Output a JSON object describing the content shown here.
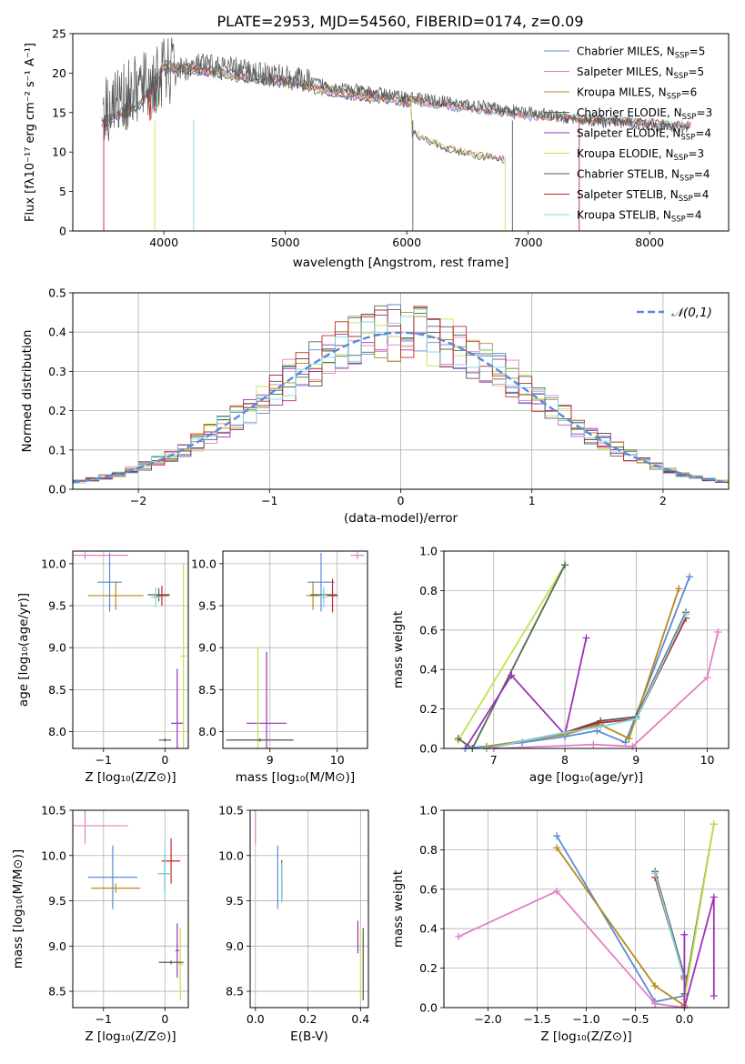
{
  "figure_title": "PLATE=2953, MJD=54560, FIBERID=0174, z=0.09",
  "series": [
    {
      "key": "chab_miles",
      "label": "Chabrier MILES, N",
      "sub": "SSP",
      "suffix": "=5",
      "color": "#5b8ad6"
    },
    {
      "key": "salp_miles",
      "label": "Salpeter MILES, N",
      "sub": "SSP",
      "suffix": "=5",
      "color": "#e37fc5"
    },
    {
      "key": "krou_miles",
      "label": "Kroupa MILES, N",
      "sub": "SSP",
      "suffix": "=6",
      "color": "#b58a1e"
    },
    {
      "key": "chab_elodie",
      "label": "Chabrier ELODIE, N",
      "sub": "SSP",
      "suffix": "=3",
      "color": "#4f6b4f"
    },
    {
      "key": "salp_elodie",
      "label": "Salpeter ELODIE, N",
      "sub": "SSP",
      "suffix": "=4",
      "color": "#9b32b8"
    },
    {
      "key": "krou_elodie",
      "label": "Kroupa ELODIE, N",
      "sub": "SSP",
      "suffix": "=3",
      "color": "#c8e04a"
    },
    {
      "key": "chab_stelib",
      "label": "Chabrier STELIB, N",
      "sub": "SSP",
      "suffix": "=4",
      "color": "#555555"
    },
    {
      "key": "salp_stelib",
      "label": "Salpeter STELIB, N",
      "sub": "SSP",
      "suffix": "=4",
      "color": "#c0282c"
    },
    {
      "key": "krou_stelib",
      "label": "Kroupa STELIB, N",
      "sub": "SSP",
      "suffix": "=4",
      "color": "#7dd8e0"
    }
  ],
  "chart_data": [
    {
      "id": "spectrum",
      "type": "line",
      "xlabel": "wavelength [Angstrom, rest frame]",
      "ylabel": "Flux [fλ10⁻¹⁷ erg cm⁻² s⁻¹ A⁻¹]",
      "xlim": [
        3250,
        8650
      ],
      "ylim": [
        0,
        25
      ],
      "xticks": [
        4000,
        5000,
        6000,
        7000,
        8000
      ],
      "yticks": [
        0,
        5,
        10,
        15,
        20,
        25
      ],
      "legend": "upper-right",
      "continuum": {
        "data": [
          [
            3500,
            15.5
          ],
          [
            3800,
            18
          ],
          [
            4000,
            20
          ],
          [
            4300,
            21
          ],
          [
            4600,
            20.5
          ],
          [
            5000,
            19.5
          ],
          [
            5500,
            18
          ],
          [
            6000,
            17
          ],
          [
            6500,
            16
          ],
          [
            7000,
            15
          ],
          [
            7500,
            14
          ],
          [
            8000,
            13.5
          ],
          [
            8300,
            13
          ]
        ],
        "model_high": [
          [
            3500,
            14
          ],
          [
            3800,
            16
          ],
          [
            4000,
            21
          ],
          [
            4300,
            20.5
          ],
          [
            4600,
            19.8
          ],
          [
            5000,
            19
          ],
          [
            5500,
            17.5
          ],
          [
            6000,
            16.5
          ],
          [
            6500,
            15.5
          ],
          [
            7000,
            14.5
          ],
          [
            7500,
            14
          ],
          [
            8000,
            13.6
          ],
          [
            8300,
            13.2
          ]
        ],
        "model_low": [
          [
            6050,
            12.8
          ],
          [
            6300,
            11
          ],
          [
            6500,
            10.2
          ],
          [
            6800,
            9.5
          ]
        ]
      }
    },
    {
      "id": "residuals",
      "type": "histogram",
      "xlabel": "(data-model)/error",
      "ylabel": "Normed distribution",
      "xlim": [
        -2.5,
        2.5
      ],
      "ylim": [
        0,
        0.5
      ],
      "xticks": [
        -2,
        -1,
        0,
        1,
        2
      ],
      "yticks": [
        0.0,
        0.1,
        0.2,
        0.3,
        0.4,
        0.5
      ],
      "reference": {
        "name": "𝒩(0,1)",
        "mean": 0,
        "sigma": 1,
        "color": "#5b8ad6"
      }
    },
    {
      "id": "age_vs_Z",
      "type": "errorbar",
      "xlabel": "Z [log₁₀(Z/Z⊙)]",
      "ylabel": "age  [log₁₀(age/yr)]",
      "xlim": [
        -1.5,
        0.38
      ],
      "ylim": [
        7.8,
        10.15
      ],
      "xticks": [
        -1,
        0
      ],
      "yticks": [
        8.0,
        8.5,
        9.0,
        9.5,
        10.0
      ],
      "points": [
        {
          "s": 1,
          "x": -1.3,
          "y": 10.1,
          "xe": 0.7,
          "ye": 0.05
        },
        {
          "s": 0,
          "x": -0.9,
          "y": 9.78,
          "xe": 0.2,
          "ye": 0.35
        },
        {
          "s": 2,
          "x": -0.8,
          "y": 9.62,
          "xe": 0.45,
          "ye": 0.17
        },
        {
          "s": 3,
          "x": -0.1,
          "y": 9.63,
          "xe": 0.18,
          "ye": 0.08
        },
        {
          "s": 7,
          "x": -0.05,
          "y": 9.62,
          "xe": 0.12,
          "ye": 0.12
        },
        {
          "s": 8,
          "x": -0.15,
          "y": 9.6,
          "xe": 0.08,
          "ye": 0.12
        },
        {
          "s": 4,
          "x": 0.2,
          "y": 8.1,
          "xe": 0.1,
          "ye": 0.65
        },
        {
          "s": 5,
          "x": 0.3,
          "y": 8.9,
          "xe": 0.05,
          "ye": 1.1
        },
        {
          "s": 6,
          "x": 0.0,
          "y": 7.9,
          "xe": 0.1,
          "ye": 0.02
        }
      ]
    },
    {
      "id": "age_vs_mass",
      "type": "errorbar",
      "xlabel": "mass [log₁₀(M/M⊙)]",
      "ylabel": "",
      "xlim": [
        8.3,
        10.45
      ],
      "ylim": [
        7.8,
        10.15
      ],
      "xticks": [
        9,
        10
      ],
      "yticks": [
        8.0,
        8.5,
        9.0,
        9.5,
        10.0
      ],
      "points": [
        {
          "s": 1,
          "x": 10.3,
          "y": 10.1,
          "xe": 0.1,
          "ye": 0.05
        },
        {
          "s": 0,
          "x": 9.76,
          "y": 9.78,
          "xe": 0.2,
          "ye": 0.35
        },
        {
          "s": 2,
          "x": 9.64,
          "y": 9.62,
          "xe": 0.1,
          "ye": 0.17
        },
        {
          "s": 3,
          "x": 9.8,
          "y": 9.63,
          "xe": 0.2,
          "ye": 0.08
        },
        {
          "s": 7,
          "x": 9.93,
          "y": 9.62,
          "xe": 0.08,
          "ye": 0.2
        },
        {
          "s": 8,
          "x": 9.8,
          "y": 9.6,
          "xe": 0.05,
          "ye": 0.12
        },
        {
          "s": 4,
          "x": 8.95,
          "y": 8.1,
          "xe": 0.3,
          "ye": 0.85
        },
        {
          "s": 5,
          "x": 8.82,
          "y": 7.9,
          "xe": 0.4,
          "ye": 1.1
        },
        {
          "s": 6,
          "x": 8.85,
          "y": 7.9,
          "xe": 0.5,
          "ye": 0.02
        }
      ]
    },
    {
      "id": "weight_vs_age",
      "type": "line",
      "xlabel": "age  [log₁₀(age/yr)]",
      "ylabel": "mass weight",
      "xlim": [
        6.3,
        10.3
      ],
      "ylim": [
        0,
        1.0
      ],
      "xticks": [
        7,
        8,
        9,
        10
      ],
      "yticks": [
        0.0,
        0.2,
        0.4,
        0.6,
        0.8,
        1.0
      ],
      "lines": [
        {
          "s": 5,
          "pts": [
            [
              6.5,
              0.04
            ],
            [
              8.0,
              0.93
            ]
          ]
        },
        {
          "s": 3,
          "pts": [
            [
              6.5,
              0.05
            ],
            [
              6.7,
              0.0
            ],
            [
              8.0,
              0.93
            ]
          ]
        },
        {
          "s": 4,
          "pts": [
            [
              6.6,
              0.0
            ],
            [
              7.25,
              0.37
            ],
            [
              8.0,
              0.07
            ],
            [
              8.3,
              0.56
            ]
          ]
        },
        {
          "s": 0,
          "pts": [
            [
              6.6,
              0.0
            ],
            [
              7.4,
              0.03
            ],
            [
              8.0,
              0.06
            ],
            [
              8.45,
              0.09
            ],
            [
              8.85,
              0.03
            ],
            [
              9.75,
              0.87
            ]
          ]
        },
        {
          "s": 2,
          "pts": [
            [
              6.9,
              0.01
            ],
            [
              8.0,
              0.07
            ],
            [
              8.5,
              0.12
            ],
            [
              8.9,
              0.05
            ],
            [
              9.6,
              0.81
            ]
          ]
        },
        {
          "s": 6,
          "pts": [
            [
              6.9,
              0.0
            ],
            [
              8.0,
              0.08
            ],
            [
              8.5,
              0.14
            ],
            [
              9.0,
              0.16
            ],
            [
              9.7,
              0.69
            ]
          ]
        },
        {
          "s": 7,
          "pts": [
            [
              6.9,
              0.0
            ],
            [
              8.0,
              0.08
            ],
            [
              8.5,
              0.13
            ],
            [
              9.0,
              0.15
            ],
            [
              9.7,
              0.66
            ]
          ]
        },
        {
          "s": 8,
          "pts": [
            [
              6.9,
              0.0
            ],
            [
              8.0,
              0.08
            ],
            [
              8.5,
              0.11
            ],
            [
              9.0,
              0.15
            ],
            [
              9.7,
              0.68
            ]
          ]
        },
        {
          "s": 1,
          "pts": [
            [
              7.0,
              0.0
            ],
            [
              8.4,
              0.02
            ],
            [
              8.95,
              0.01
            ],
            [
              10.0,
              0.36
            ],
            [
              10.15,
              0.59
            ]
          ]
        }
      ]
    },
    {
      "id": "mass_vs_Z",
      "type": "errorbar",
      "xlabel": "Z [log₁₀(Z/Z⊙)]",
      "ylabel": "mass [log₁₀(M/M⊙)]",
      "xlim": [
        -1.5,
        0.38
      ],
      "ylim": [
        8.32,
        10.5
      ],
      "xticks": [
        -1,
        0
      ],
      "yticks": [
        8.5,
        9.0,
        9.5,
        10.0,
        10.5
      ],
      "points": [
        {
          "s": 1,
          "x": -1.3,
          "y": 10.33,
          "xe": 0.7,
          "ye": 0.2
        },
        {
          "s": 0,
          "x": -0.85,
          "y": 9.76,
          "xe": 0.4,
          "ye": 0.35
        },
        {
          "s": 2,
          "x": -0.8,
          "y": 9.64,
          "xe": 0.4,
          "ye": 0.05
        },
        {
          "s": 7,
          "x": 0.1,
          "y": 9.94,
          "xe": 0.15,
          "ye": 0.25
        },
        {
          "s": 3,
          "x": 0.0,
          "y": 9.8,
          "xe": 0.1,
          "ye": 0.2
        },
        {
          "s": 8,
          "x": 0.0,
          "y": 9.8,
          "xe": 0.12,
          "ye": 0.3
        },
        {
          "s": 4,
          "x": 0.2,
          "y": 8.95,
          "xe": 0.03,
          "ye": 0.3
        },
        {
          "s": 5,
          "x": 0.25,
          "y": 8.8,
          "xe": 0.05,
          "ye": 0.4
        },
        {
          "s": 6,
          "x": 0.1,
          "y": 8.82,
          "xe": 0.2,
          "ye": 0.02
        }
      ]
    },
    {
      "id": "mass_vs_ebv",
      "type": "errorbar",
      "xlabel": "E(B-V)",
      "ylabel": "",
      "xlim": [
        -0.02,
        0.43
      ],
      "ylim": [
        8.32,
        10.5
      ],
      "xticks": [
        0.0,
        0.2,
        0.4
      ],
      "yticks": [
        8.5,
        9.0,
        9.5,
        10.0,
        10.5
      ],
      "points": [
        {
          "s": 1,
          "x": 0.0,
          "y": 10.33,
          "xe": 0.0,
          "ye": 0.2
        },
        {
          "s": 0,
          "x": 0.085,
          "y": 9.76,
          "xe": 0.0,
          "ye": 0.35
        },
        {
          "s": 2,
          "x": 0.1,
          "y": 9.64,
          "xe": 0.0,
          "ye": 0.1
        },
        {
          "s": 7,
          "x": 0.1,
          "y": 9.75,
          "xe": 0.0,
          "ye": 0.2
        },
        {
          "s": 3,
          "x": 0.1,
          "y": 9.7,
          "xe": 0.0,
          "ye": 0.2
        },
        {
          "s": 8,
          "x": 0.1,
          "y": 9.7,
          "xe": 0.0,
          "ye": 0.22
        },
        {
          "s": 4,
          "x": 0.39,
          "y": 9.1,
          "xe": 0.0,
          "ye": 0.18
        },
        {
          "s": 5,
          "x": 0.4,
          "y": 8.8,
          "xe": 0.0,
          "ye": 0.4
        },
        {
          "s": 6,
          "x": 0.41,
          "y": 8.8,
          "xe": 0.0,
          "ye": 0.4
        }
      ]
    },
    {
      "id": "weight_vs_Z",
      "type": "line",
      "xlabel": "Z [log₁₀(Z/Z⊙)]",
      "ylabel": "mass weight",
      "xlim": [
        -2.45,
        0.45
      ],
      "ylim": [
        0,
        1.0
      ],
      "xticks": [
        -2.0,
        -1.5,
        -1.0,
        -0.5,
        0.0
      ],
      "yticks": [
        0.0,
        0.2,
        0.4,
        0.6,
        0.8,
        1.0
      ],
      "lines": [
        {
          "s": 0,
          "pts": [
            [
              -1.3,
              0.87
            ],
            [
              -0.3,
              0.03
            ],
            [
              0.0,
              0.06
            ]
          ]
        },
        {
          "s": 2,
          "pts": [
            [
              -1.3,
              0.81
            ],
            [
              -0.3,
              0.11
            ],
            [
              0.0,
              0.01
            ]
          ]
        },
        {
          "s": 1,
          "pts": [
            [
              -2.3,
              0.36
            ],
            [
              -1.3,
              0.59
            ],
            [
              -0.3,
              0.02
            ],
            [
              0.0,
              0.0
            ]
          ]
        },
        {
          "s": 6,
          "pts": [
            [
              -0.3,
              0.69
            ],
            [
              0.0,
              0.16
            ]
          ]
        },
        {
          "s": 7,
          "pts": [
            [
              -0.3,
              0.66
            ],
            [
              0.0,
              0.15
            ]
          ]
        },
        {
          "s": 8,
          "pts": [
            [
              -0.3,
              0.68
            ],
            [
              0.0,
              0.14
            ]
          ]
        },
        {
          "s": 3,
          "pts": [
            [
              0.0,
              0.07
            ],
            [
              0.3,
              0.93
            ]
          ]
        },
        {
          "s": 5,
          "pts": [
            [
              0.0,
              0.04
            ],
            [
              0.3,
              0.93
            ]
          ]
        },
        {
          "s": 4,
          "pts": [
            [
              0.0,
              0.37
            ],
            [
              0.0,
              0.0
            ],
            [
              0.3,
              0.56
            ],
            [
              0.3,
              0.06
            ]
          ]
        }
      ]
    }
  ]
}
